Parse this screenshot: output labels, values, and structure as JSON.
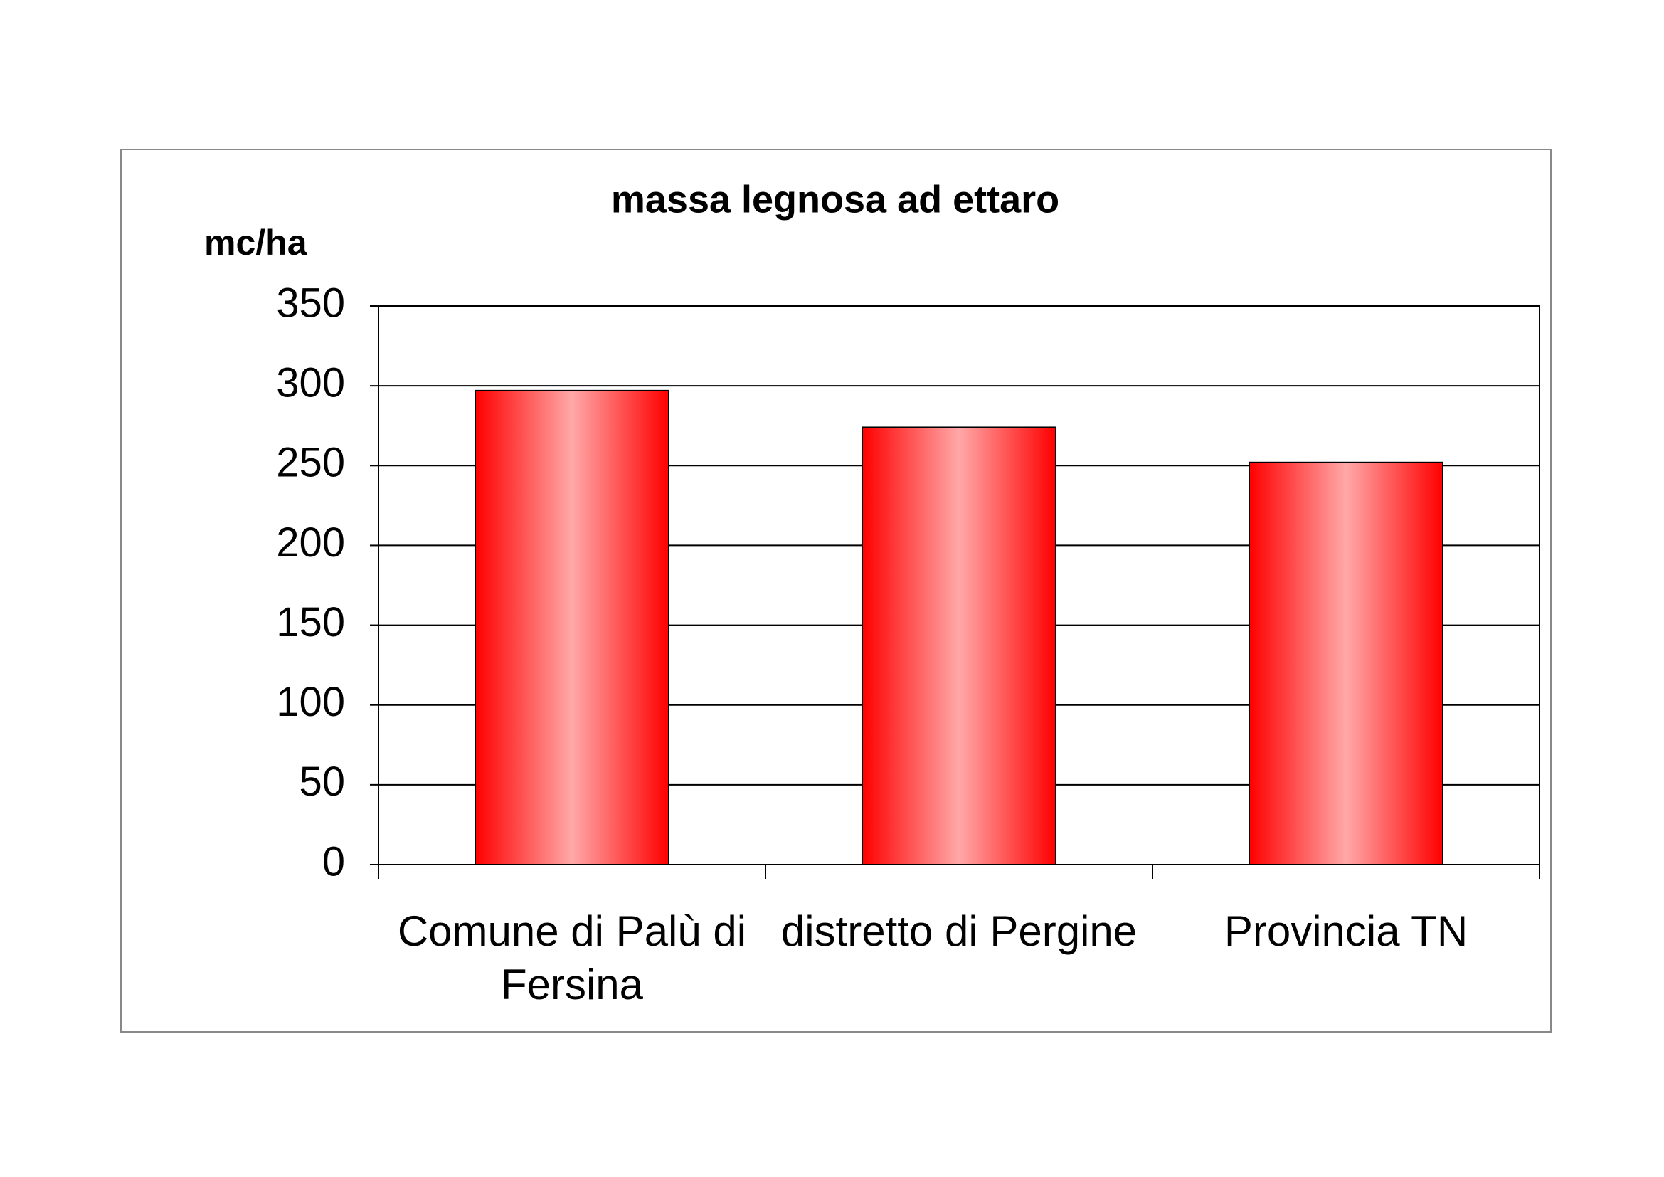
{
  "chart_data": {
    "type": "bar",
    "title": "massa legnosa ad ettaro",
    "y_label": "mc/ha",
    "categories": [
      "Comune di Palù di Fersina",
      "distretto di Pergine",
      "Provincia TN"
    ],
    "values": [
      297,
      274,
      252
    ],
    "color": "#ff0000",
    "ylim": [
      0,
      350
    ],
    "yticks": [
      0,
      50,
      100,
      150,
      200,
      250,
      300,
      350
    ],
    "grid": true
  }
}
